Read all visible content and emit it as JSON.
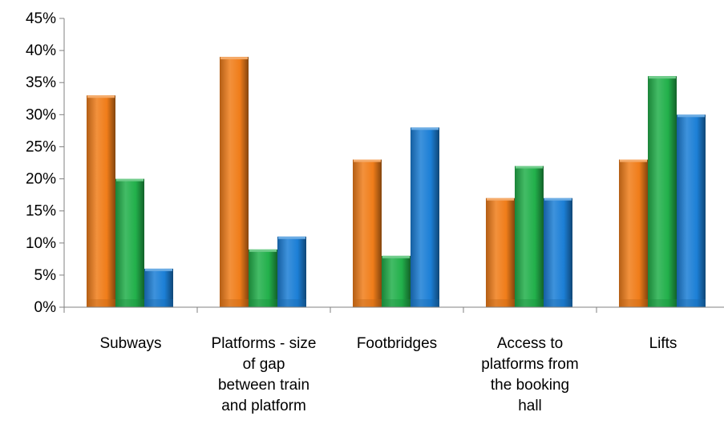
{
  "chart_data": {
    "type": "bar",
    "categories": [
      [
        "Subways"
      ],
      [
        "Platforms - size",
        "of gap",
        "between train",
        "and platform"
      ],
      [
        "Footbridges"
      ],
      [
        "Access to",
        "platforms from",
        "the booking",
        "hall"
      ],
      [
        "Lifts"
      ]
    ],
    "series": [
      {
        "values": [
          33,
          39,
          23,
          17,
          23
        ],
        "color": "#f07d1a"
      },
      {
        "values": [
          20,
          9,
          8,
          22,
          36
        ],
        "color": "#22b04b"
      },
      {
        "values": [
          6,
          11,
          28,
          17,
          30
        ],
        "color": "#1c7fd6"
      }
    ],
    "ylim": [
      0,
      45
    ],
    "yticks": [
      0,
      5,
      10,
      15,
      20,
      25,
      30,
      35,
      40,
      45
    ],
    "ytick_format": "percent",
    "grid": false,
    "legend": "none"
  }
}
